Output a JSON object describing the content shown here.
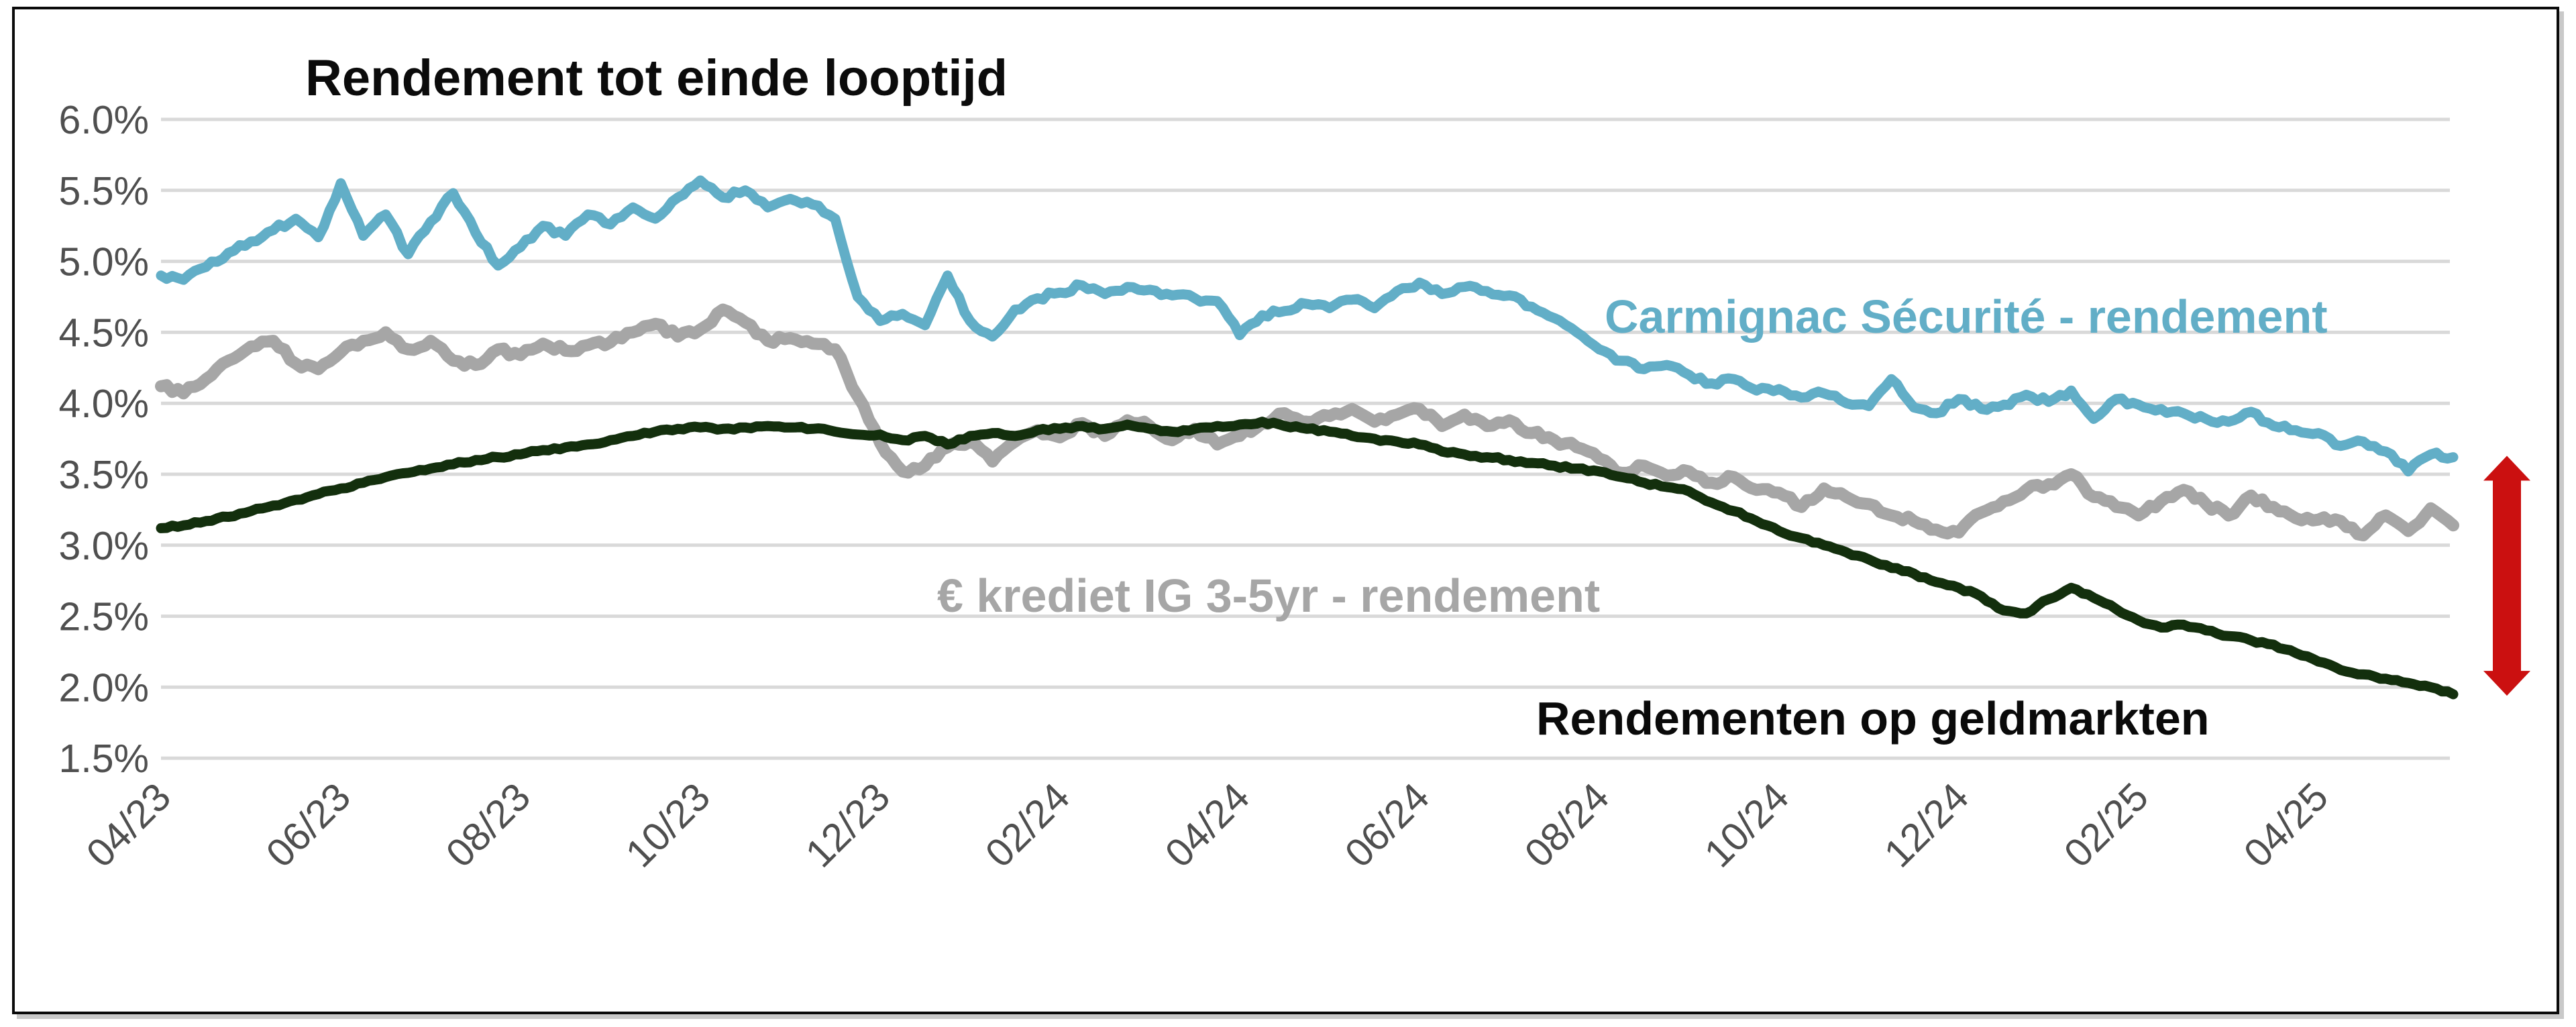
{
  "window": {
    "background": "#FFFFFF",
    "frame_border_color": "#0A0A0A",
    "frame_shadow_color": "#C9C9C9"
  },
  "chart_data": {
    "type": "line",
    "title": "Rendement tot einde looptijd",
    "grid": true,
    "legend_position": "inline-labels",
    "gridline_color": "#D9D9D9",
    "tick_label_color": "#4F4F4F",
    "title_color": "#0B0B0B",
    "x_axis": {
      "tick_labels": [
        "04/23",
        "06/23",
        "08/23",
        "10/23",
        "12/23",
        "02/24",
        "04/24",
        "06/24",
        "08/24",
        "10/24",
        "12/24",
        "02/25",
        "04/25"
      ],
      "tick_step_months": 2,
      "label_rotation_deg": -45
    },
    "y_axis": {
      "tick_labels": [
        "6.0%",
        "5.5%",
        "5.0%",
        "4.5%",
        "4.0%",
        "3.5%",
        "3.0%",
        "2.5%",
        "2.0%",
        "1.5%"
      ],
      "min": 1.5,
      "max": 6.0,
      "step": 0.5,
      "format": "percent"
    },
    "x": {
      "start": 0,
      "step": 0.25,
      "count": 103,
      "unit": "months since 2023-04"
    },
    "series": [
      {
        "name": "Carmignac Sécurité - rendement",
        "color": "#62AEC7",
        "stroke_width": 15,
        "values": [
          4.9,
          4.87,
          4.96,
          5.06,
          5.14,
          5.22,
          5.3,
          5.17,
          5.55,
          5.18,
          5.33,
          5.05,
          5.28,
          5.48,
          5.2,
          4.97,
          5.1,
          5.25,
          5.18,
          5.33,
          5.26,
          5.38,
          5.3,
          5.45,
          5.57,
          5.45,
          5.5,
          5.38,
          5.44,
          5.4,
          5.3,
          4.75,
          4.58,
          4.63,
          4.55,
          4.9,
          4.58,
          4.47,
          4.66,
          4.74,
          4.78,
          4.83,
          4.77,
          4.82,
          4.8,
          4.76,
          4.74,
          4.72,
          4.48,
          4.62,
          4.65,
          4.7,
          4.67,
          4.73,
          4.67,
          4.79,
          4.85,
          4.77,
          4.82,
          4.79,
          4.76,
          4.68,
          4.6,
          4.5,
          4.38,
          4.3,
          4.24,
          4.27,
          4.2,
          4.14,
          4.17,
          4.09,
          4.1,
          4.04,
          4.07,
          4.0,
          3.98,
          4.17,
          3.97,
          3.93,
          4.03,
          3.96,
          3.99,
          4.06,
          4.01,
          4.09,
          3.89,
          4.03,
          3.99,
          3.96,
          3.93,
          3.89,
          3.87,
          3.94,
          3.84,
          3.81,
          3.79,
          3.7,
          3.73,
          3.66,
          3.52,
          3.64,
          3.62
        ]
      },
      {
        "name": "€ krediet IG 3-5yr - rendement",
        "color": "#A6A6A6",
        "stroke_width": 18,
        "values": [
          4.12,
          4.07,
          4.17,
          4.3,
          4.4,
          4.44,
          4.28,
          4.24,
          4.36,
          4.44,
          4.5,
          4.38,
          4.44,
          4.3,
          4.27,
          4.38,
          4.34,
          4.42,
          4.37,
          4.41,
          4.43,
          4.5,
          4.56,
          4.47,
          4.52,
          4.66,
          4.57,
          4.44,
          4.46,
          4.42,
          4.38,
          4.05,
          3.72,
          3.52,
          3.56,
          3.69,
          3.73,
          3.59,
          3.73,
          3.81,
          3.76,
          3.86,
          3.77,
          3.88,
          3.84,
          3.74,
          3.82,
          3.71,
          3.77,
          3.86,
          3.93,
          3.87,
          3.91,
          3.96,
          3.87,
          3.92,
          3.96,
          3.84,
          3.92,
          3.84,
          3.88,
          3.79,
          3.74,
          3.69,
          3.61,
          3.51,
          3.56,
          3.49,
          3.52,
          3.44,
          3.48,
          3.39,
          3.37,
          3.27,
          3.4,
          3.34,
          3.29,
          3.21,
          3.17,
          3.11,
          3.09,
          3.23,
          3.31,
          3.39,
          3.43,
          3.5,
          3.34,
          3.27,
          3.21,
          3.31,
          3.39,
          3.29,
          3.21,
          3.35,
          3.27,
          3.19,
          3.18,
          3.17,
          3.07,
          3.21,
          3.1,
          3.26,
          3.14
        ]
      },
      {
        "name": "Rendementen op geldmarkten",
        "color": "#132F0D",
        "stroke_width": 15,
        "values": [
          3.12,
          3.14,
          3.17,
          3.2,
          3.24,
          3.28,
          3.32,
          3.36,
          3.4,
          3.44,
          3.48,
          3.51,
          3.54,
          3.57,
          3.6,
          3.62,
          3.64,
          3.67,
          3.69,
          3.71,
          3.74,
          3.77,
          3.8,
          3.82,
          3.83,
          3.82,
          3.83,
          3.84,
          3.83,
          3.82,
          3.8,
          3.78,
          3.78,
          3.74,
          3.77,
          3.71,
          3.77,
          3.79,
          3.77,
          3.81,
          3.82,
          3.84,
          3.82,
          3.85,
          3.82,
          3.8,
          3.82,
          3.84,
          3.85,
          3.87,
          3.84,
          3.82,
          3.8,
          3.77,
          3.75,
          3.73,
          3.71,
          3.66,
          3.64,
          3.62,
          3.6,
          3.58,
          3.56,
          3.54,
          3.52,
          3.48,
          3.44,
          3.41,
          3.38,
          3.3,
          3.24,
          3.17,
          3.1,
          3.05,
          3.0,
          2.95,
          2.9,
          2.84,
          2.8,
          2.74,
          2.7,
          2.64,
          2.54,
          2.52,
          2.62,
          2.7,
          2.63,
          2.55,
          2.47,
          2.42,
          2.44,
          2.4,
          2.36,
          2.33,
          2.3,
          2.24,
          2.18,
          2.12,
          2.09,
          2.06,
          2.03,
          2.0,
          1.95
        ]
      }
    ],
    "annotation_arrow": {
      "name": "red-double-arrow",
      "color": "#CB1010",
      "from_value": 3.63,
      "to_value": 1.94
    }
  }
}
